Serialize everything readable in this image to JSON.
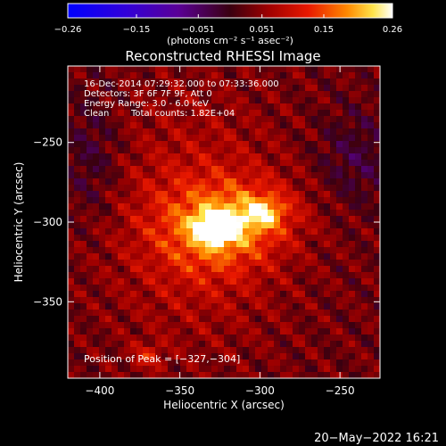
{
  "chart_data": {
    "type": "heatmap",
    "title": "Reconstructed RHESSI Image",
    "xlabel": "Heliocentric X (arcsec)",
    "ylabel": "Heliocentric Y (arcsec)",
    "xlim": [
      -420,
      -225
    ],
    "ylim": [
      -398,
      -202
    ],
    "x_ticks": [
      -400,
      -350,
      -300,
      -250
    ],
    "x_tick_labels": [
      "−400",
      "−350",
      "−300",
      "−250"
    ],
    "y_ticks": [
      -250,
      -300,
      -350
    ],
    "y_tick_labels": [
      "−250",
      "−300",
      "−350"
    ],
    "colorbar": {
      "min": -0.26,
      "max": 0.26,
      "ticks": [
        -0.26,
        -0.15,
        -0.051,
        0.051,
        0.15,
        0.26
      ],
      "tick_labels": [
        "−0.26",
        "−0.15",
        "−0.051",
        "0.051",
        "0.15",
        "0.26"
      ],
      "units": "(photons cm⁻² s⁻¹ asec⁻²)"
    },
    "annotations": {
      "time_range": "16-Dec-2014 07:29:32.000 to 07:33:36.000",
      "detectors": "Detectors: 3F 6F 7F 9F, Att 0",
      "energy": "Energy Range: 3.0 - 6.0 keV",
      "method": "Clean",
      "total_counts": "Total counts: 1.82E+04",
      "peak": "Position of Peak = [−327,−304]"
    },
    "sources": [
      {
        "x": -327,
        "y": -304,
        "peak": 0.26
      },
      {
        "x": -298,
        "y": -294,
        "peak": 0.15
      },
      {
        "x": -370,
        "y": -384,
        "peak": 0.1
      }
    ],
    "peak_position": [
      -327,
      -304
    ]
  },
  "footer": {
    "date": "20−May−2022 16:21"
  },
  "colors": {
    "background": "#000000",
    "foreground": "#ffffff"
  }
}
